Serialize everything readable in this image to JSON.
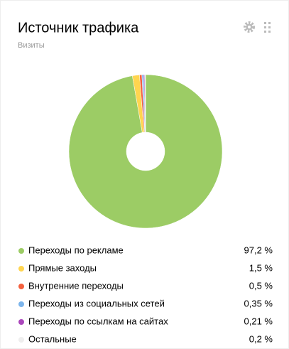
{
  "chart_data": {
    "type": "pie",
    "title": "Источник трафика",
    "subtitle": "Визиты",
    "categories": [
      "Переходы по рекламе",
      "Прямые заходы",
      "Внутренние переходы",
      "Переходы из социальных сетей",
      "Переходы по ссылкам на сайтах",
      "Остальные"
    ],
    "values": [
      97.2,
      1.5,
      0.5,
      0.35,
      0.21,
      0.2
    ],
    "value_labels": [
      "97,2 %",
      "1,5 %",
      "0,5 %",
      "0,35 %",
      "0,21 %",
      "0,2 %"
    ],
    "colors": [
      "#9ccc65",
      "#ffd54f",
      "#f4603e",
      "#7cb5ec",
      "#ab47bc",
      "#eeeeee"
    ]
  }
}
